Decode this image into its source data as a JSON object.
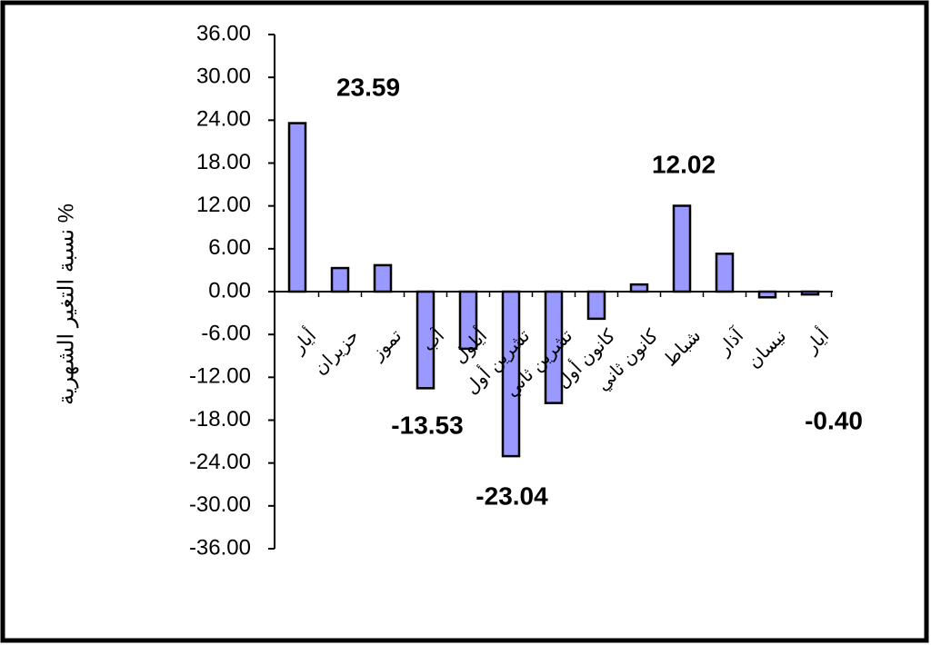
{
  "chart_data": {
    "type": "bar",
    "y_label": "نسبة التغير الشهرية %",
    "categories": [
      "أيار",
      "حزيران",
      "تموز",
      "آب",
      "أيلول",
      "تشرين أول",
      "تشرين ثاني",
      "كانون أول",
      "كانون ثاني",
      "شباط",
      "آذار",
      "نيسان",
      "أيار"
    ],
    "values": [
      23.59,
      3.3,
      3.7,
      -13.53,
      -8.0,
      -23.04,
      -15.6,
      -3.8,
      1.0,
      12.02,
      5.3,
      -0.8,
      -0.4
    ],
    "value_labels": [
      "23.59",
      null,
      null,
      "-13.53",
      null,
      "-23.04",
      null,
      null,
      null,
      "12.02",
      null,
      null,
      "-0.40"
    ],
    "color": "#9999ff",
    "ylim": [
      -36,
      36
    ],
    "yticks": [
      {
        "value": 36,
        "label": "36.00"
      },
      {
        "value": 30,
        "label": "30.00"
      },
      {
        "value": 24,
        "label": "24.00"
      },
      {
        "value": 18,
        "label": "18.00"
      },
      {
        "value": 12,
        "label": "12.00"
      },
      {
        "value": 6,
        "label": "6.00"
      },
      {
        "value": 0,
        "label": "0.00"
      },
      {
        "value": -6,
        "label": "-6.00"
      },
      {
        "value": -12,
        "label": "-12.00"
      },
      {
        "value": -18,
        "label": "-18.00"
      },
      {
        "value": -24,
        "label": "-24.00"
      },
      {
        "value": -30,
        "label": "-30.00"
      },
      {
        "value": -36,
        "label": "-36.00"
      }
    ],
    "grid": false
  }
}
